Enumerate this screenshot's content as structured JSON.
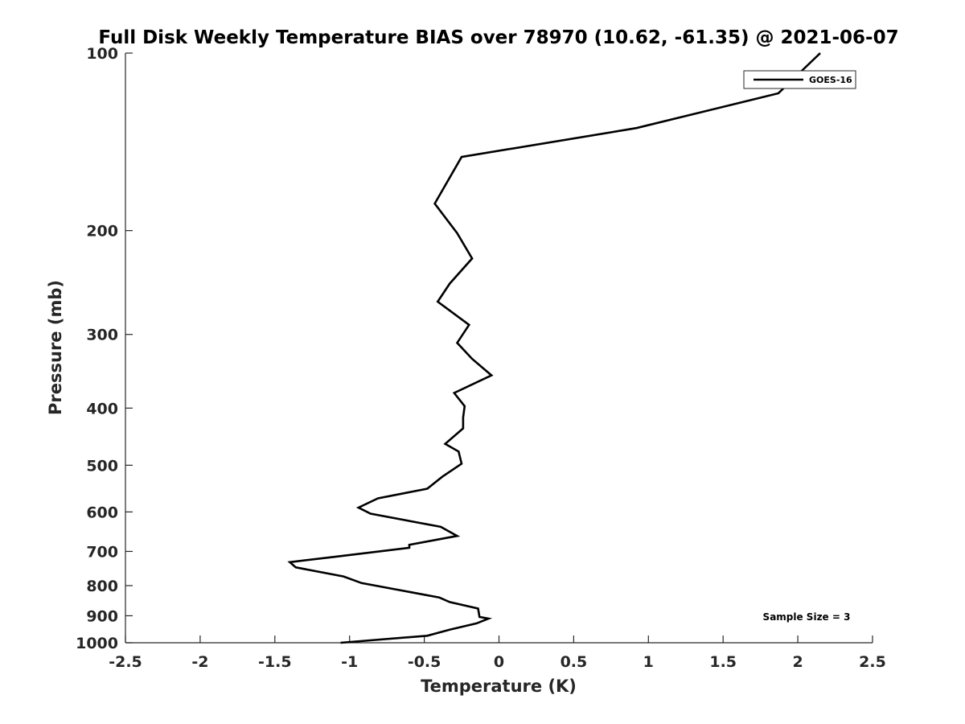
{
  "chart_data": {
    "type": "line",
    "title": "Full Disk Weekly Temperature BIAS over 78970 (10.62, -61.35) @ 2021-06-07",
    "xlabel": "Temperature (K)",
    "ylabel": "Pressure (mb)",
    "xlim": [
      -2.5,
      2.5
    ],
    "ylim": [
      1000,
      100
    ],
    "y_scale": "log",
    "y_reversed": true,
    "x_ticks": [
      "-2.5",
      "-2",
      "-1.5",
      "-1",
      "-0.5",
      "0",
      "0.5",
      "1",
      "1.5",
      "2",
      "2.5"
    ],
    "x_tick_values": [
      -2.5,
      -2,
      -1.5,
      -1,
      -0.5,
      0,
      0.5,
      1,
      1.5,
      2,
      2.5
    ],
    "y_ticks": [
      "100",
      "200",
      "300",
      "400",
      "500",
      "600",
      "700",
      "800",
      "900",
      "1000"
    ],
    "y_tick_values": [
      100,
      200,
      300,
      400,
      500,
      600,
      700,
      800,
      900,
      1000
    ],
    "grid": false,
    "legend_position": "top-right",
    "annotation": "Sample Size = 3",
    "series": [
      {
        "name": "GOES-16",
        "color": "#000000",
        "points": [
          [
            2.15,
            100
          ],
          [
            1.87,
            117
          ],
          [
            0.92,
            134
          ],
          [
            -0.25,
            150
          ],
          [
            -0.43,
            180
          ],
          [
            -0.28,
            202
          ],
          [
            -0.18,
            223
          ],
          [
            -0.33,
            246
          ],
          [
            -0.41,
            264
          ],
          [
            -0.2,
            289
          ],
          [
            -0.28,
            310
          ],
          [
            -0.18,
            330
          ],
          [
            -0.05,
            352
          ],
          [
            -0.3,
            377
          ],
          [
            -0.23,
            397
          ],
          [
            -0.24,
            415
          ],
          [
            -0.24,
            433
          ],
          [
            -0.36,
            460
          ],
          [
            -0.27,
            474
          ],
          [
            -0.25,
            497
          ],
          [
            -0.38,
            523
          ],
          [
            -0.48,
            548
          ],
          [
            -0.81,
            569
          ],
          [
            -0.94,
            590
          ],
          [
            -0.86,
            604
          ],
          [
            -0.39,
            636
          ],
          [
            -0.28,
            659
          ],
          [
            -0.6,
            682
          ],
          [
            -0.6,
            690
          ],
          [
            -1.1,
            715
          ],
          [
            -1.4,
            730
          ],
          [
            -1.36,
            745
          ],
          [
            -1.04,
            772
          ],
          [
            -0.92,
            792
          ],
          [
            -0.4,
            838
          ],
          [
            -0.33,
            853
          ],
          [
            -0.14,
            875
          ],
          [
            -0.13,
            904
          ],
          [
            -0.07,
            910
          ],
          [
            -0.15,
            927
          ],
          [
            -0.33,
            950
          ],
          [
            -0.48,
            973
          ],
          [
            -1.06,
            1000
          ]
        ]
      }
    ]
  }
}
